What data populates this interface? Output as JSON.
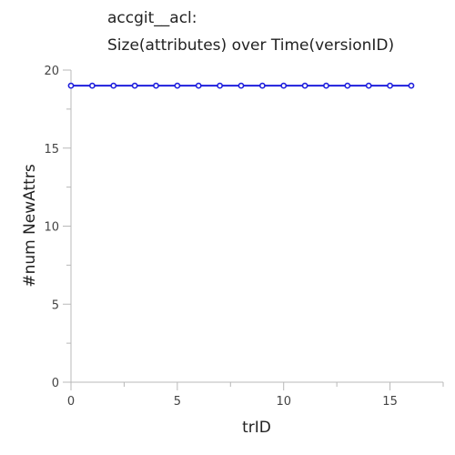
{
  "chart_data": {
    "type": "line",
    "title": "accgit__acl:",
    "subtitle": "Size(attributes) over Time(versionID)",
    "xlabel": "trID",
    "ylabel": "#num NewAttrs",
    "xlim": [
      0,
      17.5
    ],
    "ylim": [
      0,
      20
    ],
    "x_ticks": [
      0,
      5,
      10,
      15
    ],
    "y_ticks": [
      0,
      5,
      10,
      15,
      20
    ],
    "grid": false,
    "series": [
      {
        "x": [
          0,
          1,
          2,
          3,
          4,
          5,
          6,
          7,
          8,
          9,
          10,
          11,
          12,
          13,
          14,
          15,
          16
        ],
        "values": [
          19,
          19,
          19,
          19,
          19,
          19,
          19,
          19,
          19,
          19,
          19,
          19,
          19,
          19,
          19,
          19,
          19
        ],
        "color": "#1f1fdd"
      }
    ]
  }
}
